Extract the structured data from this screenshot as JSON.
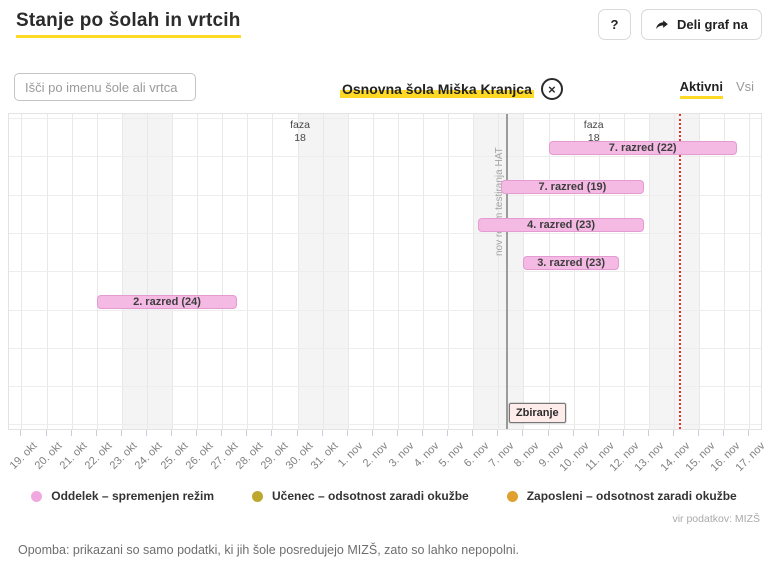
{
  "header": {
    "title": "Stanje po šolah in vrtcih",
    "help_button": "?",
    "share_button": "Deli graf na"
  },
  "toolbar": {
    "search_placeholder": "Išči po imenu šole ali vrtca",
    "selected_school": "Osnovna šola Miška Kranjca",
    "close_icon": "×",
    "tabs": [
      {
        "label": "Aktivni",
        "active": true
      },
      {
        "label": "Vsi",
        "active": false
      }
    ]
  },
  "chart_data": {
    "type": "timeline",
    "x_labels": [
      "19. okt",
      "20. okt",
      "21. okt",
      "22. okt",
      "23. okt",
      "24. okt",
      "25. okt",
      "26. okt",
      "27. okt",
      "28. okt",
      "29. okt",
      "30. okt",
      "31. okt",
      "1. nov",
      "2. nov",
      "3. nov",
      "4. nov",
      "5. nov",
      "6. nov",
      "7. nov",
      "8. nov",
      "9. nov",
      "10. nov",
      "11. nov",
      "12. nov",
      "13. nov",
      "14. nov",
      "15. nov",
      "16. nov",
      "17. nov"
    ],
    "weekend_columns": [
      4,
      5,
      11,
      12,
      18,
      19,
      25,
      26
    ],
    "rows": 8,
    "bar_color": "#f4bae4",
    "bars": [
      {
        "label": "7. razred (22)",
        "row": 0,
        "start_day": 21.0,
        "end_day": 28.5
      },
      {
        "label": "7. razred (19)",
        "row": 1,
        "start_day": 19.1,
        "end_day": 24.8
      },
      {
        "label": "4. razred (23)",
        "row": 2,
        "start_day": 18.2,
        "end_day": 24.8
      },
      {
        "label": "3. razred (23)",
        "row": 3,
        "start_day": 20.0,
        "end_day": 23.8
      },
      {
        "label": "2. razred (24)",
        "row": 4,
        "start_day": 3.0,
        "end_day": 8.6
      }
    ],
    "phase_annotations": [
      {
        "text": "faza\n18",
        "day": 10.6
      },
      {
        "text": "faza\n18",
        "day": 22.3
      }
    ],
    "event_line": {
      "day": 18.8,
      "label": "nov režim testiranja HAT",
      "color": "#9b9b9b"
    },
    "forecast_line": {
      "day": 25.7,
      "color": "#e5342b"
    },
    "collection_box": {
      "label": "Zbiranje",
      "row": 7
    }
  },
  "legend": {
    "items": [
      {
        "label": "Oddelek – spremenjen režim",
        "color": "#f0a9df"
      },
      {
        "label": "Učenec – odsotnost zaradi okužbe",
        "color": "#bda72c"
      },
      {
        "label": "Zaposleni – odsotnost zaradi okužbe",
        "color": "#dfa02f"
      }
    ]
  },
  "footer": {
    "source": "vir podatkov: MIZŠ",
    "note": "Opomba: prikazani so samo podatki, ki jih šole posredujejo MIZŠ, zato so lahko nepopolni."
  },
  "colors": {
    "accent": "#ffd924",
    "weekend": "#f4f4f4"
  }
}
